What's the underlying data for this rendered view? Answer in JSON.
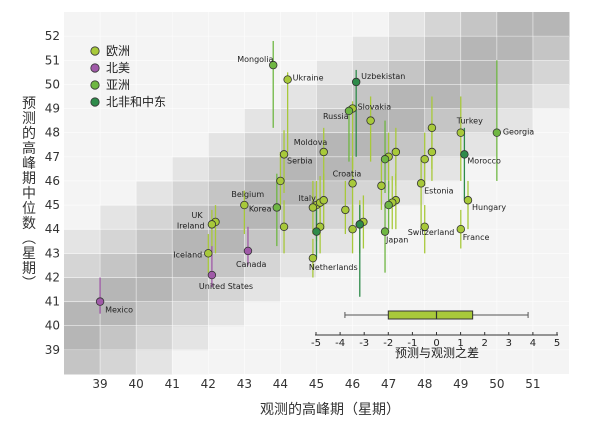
{
  "chart_data": {
    "type": "scatter",
    "title": "",
    "xlabel": "观测的高峰期（星期）",
    "ylabel": "预测的高峰期中位数（星期）",
    "xlim": [
      38,
      52
    ],
    "ylim": [
      38,
      53
    ],
    "xticks": [
      39,
      40,
      41,
      42,
      43,
      44,
      45,
      46,
      47,
      48,
      49,
      50,
      51
    ],
    "yticks": [
      39,
      40,
      41,
      42,
      43,
      44,
      45,
      46,
      47,
      48,
      49,
      50,
      51,
      52
    ],
    "colors": {
      "europe": "#a8c93a",
      "northamerica": "#a05aa8",
      "asia": "#6fb743",
      "mena": "#2e8b4a"
    },
    "legend": [
      {
        "key": "europe",
        "label": "欧洲"
      },
      {
        "key": "northamerica",
        "label": "北美"
      },
      {
        "key": "asia",
        "label": "亚洲"
      },
      {
        "key": "mena",
        "label": "北非和中东"
      }
    ],
    "points": [
      {
        "label": "Mongolia",
        "region": "asia",
        "x": 43.8,
        "y": 50.8,
        "lo": 48.2,
        "hi": 51.8
      },
      {
        "label": "Ukraine",
        "region": "europe",
        "x": 44.2,
        "y": 50.2,
        "lo": 47.2,
        "hi": 50.5
      },
      {
        "label": "Uzbekistan",
        "region": "mena",
        "x": 46.1,
        "y": 50.1,
        "lo": 47.0,
        "hi": 50.6
      },
      {
        "label": "Slovakia",
        "region": "europe",
        "x": 46.0,
        "y": 49.0,
        "lo": 46.5,
        "hi": 49.3
      },
      {
        "label": "Russia",
        "region": "asia",
        "x": 45.9,
        "y": 48.9,
        "lo": 46.8,
        "hi": 49.1
      },
      {
        "label": "Turkey",
        "region": "europe",
        "x": 49.0,
        "y": 48.0,
        "lo": 46.0,
        "hi": 49.5
      },
      {
        "label": "Georgia",
        "region": "asia",
        "x": 50.0,
        "y": 48.0,
        "lo": 46.0,
        "hi": 51.0
      },
      {
        "label": "Moldova",
        "region": "europe",
        "x": 45.2,
        "y": 47.2,
        "lo": 45.5,
        "hi": 48.2
      },
      {
        "label": "Serbia",
        "region": "europe",
        "x": 44.1,
        "y": 47.1,
        "lo": 45.5,
        "hi": 48.1
      },
      {
        "label": "Morocco",
        "region": "mena",
        "x": 49.1,
        "y": 47.1,
        "lo": 45.2,
        "hi": 48.2
      },
      {
        "label": "Croatia",
        "region": "europe",
        "x": 46.0,
        "y": 45.9,
        "lo": 44.2,
        "hi": 47.0
      },
      {
        "label": "Estonia",
        "region": "europe",
        "x": 47.9,
        "y": 45.9,
        "lo": 44.0,
        "hi": 47.0
      },
      {
        "label": "Belgium",
        "region": "europe",
        "x": 43.0,
        "y": 45.0,
        "lo": 43.8,
        "hi": 45.6
      },
      {
        "label": "Italy",
        "region": "europe",
        "x": 45.0,
        "y": 45.0,
        "lo": 43.5,
        "hi": 46.0
      },
      {
        "label": "Hungary",
        "region": "europe",
        "x": 49.2,
        "y": 45.2,
        "lo": 44.0,
        "hi": 46.0
      },
      {
        "label": "UK",
        "region": "europe",
        "x": 42.2,
        "y": 44.3,
        "lo": 43.0,
        "hi": 45.0
      },
      {
        "label": "Korea",
        "region": "asia",
        "x": 43.9,
        "y": 44.9,
        "lo": 43.3,
        "hi": 46.3
      },
      {
        "label": "Ireland",
        "region": "europe",
        "x": 42.1,
        "y": 44.2,
        "lo": 43.0,
        "hi": 44.8
      },
      {
        "label": "Switzerland",
        "region": "europe",
        "x": 48.0,
        "y": 44.1,
        "lo": 43.0,
        "hi": 45.0
      },
      {
        "label": "France",
        "region": "europe",
        "x": 49.0,
        "y": 44.0,
        "lo": 43.2,
        "hi": 44.8
      },
      {
        "label": "Japan",
        "region": "asia",
        "x": 46.9,
        "y": 43.9,
        "lo": 42.2,
        "hi": 45.0
      },
      {
        "label": "Iceland",
        "region": "europe",
        "x": 42.0,
        "y": 43.0,
        "lo": 42.2,
        "hi": 43.8
      },
      {
        "label": "Canada",
        "region": "northamerica",
        "x": 43.1,
        "y": 43.1,
        "lo": 42.5,
        "hi": 44.1
      },
      {
        "label": "United States",
        "region": "northamerica",
        "x": 42.1,
        "y": 42.1,
        "lo": 41.6,
        "hi": 43.3
      },
      {
        "label": "Netherlands",
        "region": "europe",
        "x": 44.9,
        "y": 42.8,
        "lo": 42.0,
        "hi": 43.6
      },
      {
        "label": "Mexico",
        "region": "northamerica",
        "x": 39.0,
        "y": 41.0,
        "lo": 40.5,
        "hi": 42.0
      },
      {
        "label": "",
        "region": "europe",
        "x": 44.0,
        "y": 46.0,
        "lo": 44.8,
        "hi": 47.2
      },
      {
        "label": "",
        "region": "europe",
        "x": 44.1,
        "y": 44.1,
        "lo": 43.0,
        "hi": 45.2
      },
      {
        "label": "",
        "region": "europe",
        "x": 46.5,
        "y": 48.5,
        "lo": 46.8,
        "hi": 49.5
      },
      {
        "label": "",
        "region": "europe",
        "x": 47.0,
        "y": 47.0,
        "lo": 45.5,
        "hi": 48.0
      },
      {
        "label": "",
        "region": "europe",
        "x": 47.2,
        "y": 47.2,
        "lo": 45.8,
        "hi": 48.2
      },
      {
        "label": "",
        "region": "europe",
        "x": 48.2,
        "y": 47.2,
        "lo": 46.0,
        "hi": 48.5
      },
      {
        "label": "",
        "region": "europe",
        "x": 48.0,
        "y": 46.9,
        "lo": 45.8,
        "hi": 48.0
      },
      {
        "label": "",
        "region": "europe",
        "x": 48.2,
        "y": 48.2,
        "lo": 46.5,
        "hi": 49.5
      },
      {
        "label": "",
        "region": "europe",
        "x": 47.2,
        "y": 45.2,
        "lo": 44.0,
        "hi": 46.3
      },
      {
        "label": "",
        "region": "europe",
        "x": 47.1,
        "y": 45.1,
        "lo": 44.0,
        "hi": 46.2
      },
      {
        "label": "",
        "region": "europe",
        "x": 46.2,
        "y": 44.2,
        "lo": 43.0,
        "hi": 45.2
      },
      {
        "label": "",
        "region": "europe",
        "x": 46.3,
        "y": 44.3,
        "lo": 43.2,
        "hi": 45.4
      },
      {
        "label": "",
        "region": "europe",
        "x": 45.8,
        "y": 44.8,
        "lo": 43.8,
        "hi": 46.0
      },
      {
        "label": "",
        "region": "europe",
        "x": 46.0,
        "y": 44.0,
        "lo": 43.0,
        "hi": 45.0
      },
      {
        "label": "",
        "region": "europe",
        "x": 45.1,
        "y": 45.1,
        "lo": 44.0,
        "hi": 46.2
      },
      {
        "label": "",
        "region": "europe",
        "x": 45.2,
        "y": 45.2,
        "lo": 44.0,
        "hi": 46.3
      },
      {
        "label": "",
        "region": "europe",
        "x": 44.9,
        "y": 44.9,
        "lo": 43.8,
        "hi": 46.0
      },
      {
        "label": "",
        "region": "europe",
        "x": 45.1,
        "y": 44.1,
        "lo": 43.0,
        "hi": 45.2
      },
      {
        "label": "",
        "region": "europe",
        "x": 46.8,
        "y": 45.8,
        "lo": 44.8,
        "hi": 46.8
      },
      {
        "label": "",
        "region": "asia",
        "x": 47.0,
        "y": 45.0,
        "lo": 44.0,
        "hi": 46.0
      },
      {
        "label": "",
        "region": "asia",
        "x": 46.9,
        "y": 46.9,
        "lo": 45.5,
        "hi": 48.5
      },
      {
        "label": "",
        "region": "mena",
        "x": 46.2,
        "y": 44.2,
        "lo": 41.2,
        "hi": 45.0
      },
      {
        "label": "",
        "region": "mena",
        "x": 45.0,
        "y": 43.9,
        "lo": 42.8,
        "hi": 45.0
      }
    ],
    "inset": {
      "title": "预测与观测之差",
      "xticks": [
        -5,
        -4,
        -3,
        -2,
        -1,
        0,
        1,
        2,
        3,
        4,
        5
      ],
      "whisker_low": -3.8,
      "q1": -2.0,
      "median": 0.0,
      "q3": 1.5,
      "whisker_high": 3.8
    }
  }
}
